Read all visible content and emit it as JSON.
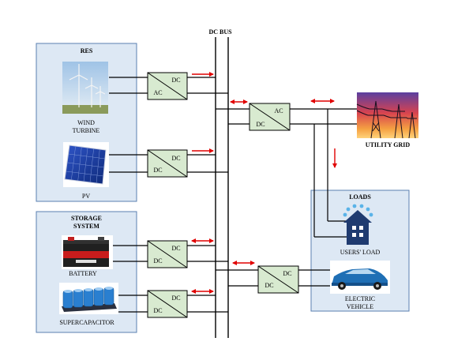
{
  "bus": {
    "label": "DC BUS"
  },
  "groups": {
    "res": {
      "title": "RES"
    },
    "storage": {
      "title_line1": "STORAGE",
      "title_line2": "SYSTEM"
    },
    "loads": {
      "title": "LOADS"
    }
  },
  "components": {
    "wind": {
      "line1": "WIND",
      "line2": "TURBINE"
    },
    "pv": {
      "label": "PV"
    },
    "battery": {
      "label": "BATTERY"
    },
    "supercap": {
      "label": "SUPERCAPACITOR"
    },
    "grid": {
      "label": "UTILITY GRID"
    },
    "users_load": {
      "label": "USERS' LOAD"
    },
    "ev": {
      "line1": "ELECTRIC",
      "line2": "VEHICLE"
    }
  },
  "converters": {
    "wind": {
      "top": "DC",
      "bottom": "AC"
    },
    "grid": {
      "top": "AC",
      "bottom": "DC"
    },
    "pv": {
      "top": "DC",
      "bottom": "DC"
    },
    "battery": {
      "top": "DC",
      "bottom": "DC"
    },
    "supercap": {
      "top": "DC",
      "bottom": "DC"
    },
    "ev": {
      "top": "DC",
      "bottom": "DC"
    }
  },
  "colors": {
    "panel_fill": "#dde8f4",
    "panel_border": "#5a7fb0",
    "arrow": "#e00000",
    "converter_fill": "#d8ead0"
  }
}
